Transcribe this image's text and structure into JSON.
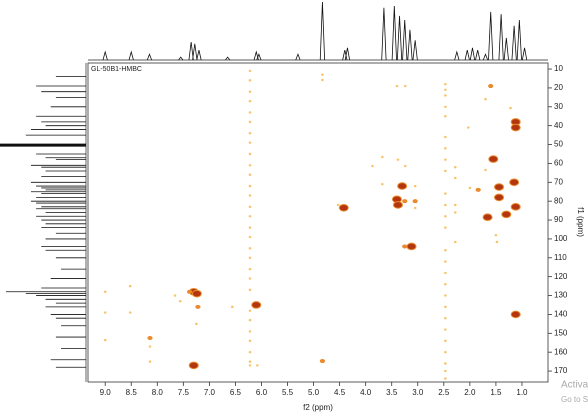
{
  "chart_data": {
    "type": "nmr2d",
    "title": "GL-50B1-HMBC",
    "x_label": "f2 (ppm)",
    "y_label": "f1 (ppm)",
    "xlim": [
      9.33,
      0.5
    ],
    "ylim": [
      6.8,
      175.8
    ],
    "xticks": [
      {
        "value": 9,
        "label": "9.0"
      },
      8.5,
      {
        "value": 8,
        "label": "8.0"
      },
      7.5,
      {
        "value": 7,
        "label": "7.0"
      },
      6.5,
      {
        "value": 6,
        "label": "6.0"
      },
      5.5,
      {
        "value": 5,
        "label": "5.0"
      },
      4.5,
      {
        "value": 4,
        "label": "4.0"
      },
      3.5,
      {
        "value": 3,
        "label": "3.0"
      },
      2.5,
      {
        "value": 2,
        "label": "2.0"
      },
      1.5,
      {
        "value": 1,
        "label": "1.0"
      }
    ],
    "yticks": [
      10,
      20,
      30,
      40,
      50,
      60,
      70,
      80,
      90,
      100,
      110,
      120,
      130,
      140,
      150,
      160,
      170
    ],
    "colors": [
      "#f7c46c",
      "#e98a2c",
      "#b3360f"
    ],
    "peaks": {
      "x": [
        7.3,
        7.24,
        7.3,
        6.1,
        3.4,
        3.38,
        4.42,
        3.3,
        3.12,
        1.55,
        1.44,
        1.44,
        1.66,
        1.12,
        1.12,
        1.15,
        1.12,
        1.12,
        1.3,
        7.38,
        3.25,
        4.83,
        3.25,
        1.6,
        7.22,
        8.14,
        1.84,
        3.05,
        9.0,
        9.0,
        9.0,
        8.52,
        8.52,
        8.14,
        8.14,
        7.66,
        7.56,
        7.25,
        6.56,
        4.83,
        4.83,
        6.22,
        6.08,
        4.53,
        3.87,
        3.68,
        3.68,
        3.38,
        3.24,
        3.4,
        3.24,
        3.05,
        3.05,
        2.47,
        2.47,
        2.28,
        2.28,
        2.28,
        2.28,
        2.28,
        2.03,
        2.0,
        1.7,
        1.5,
        1.48,
        1.22,
        1.7,
        6.22,
        6.22,
        6.22,
        6.22,
        6.22,
        6.22,
        6.22,
        6.22,
        6.22,
        6.22,
        6.22,
        6.22,
        6.22,
        6.22,
        6.22,
        6.22,
        6.22,
        6.22,
        6.22,
        6.22,
        6.22,
        6.22,
        6.22,
        6.22,
        6.22,
        6.22,
        6.22,
        6.22,
        2.47,
        2.47,
        2.47,
        2.47,
        2.47,
        2.47,
        2.47,
        2.47,
        2.47,
        2.47,
        2.47,
        2.47,
        2.47,
        2.47,
        2.47,
        2.47,
        2.47,
        2.47,
        2.47,
        2.47,
        2.47,
        2.47,
        2.47,
        2.47
      ],
      "y": [
        128,
        129,
        167,
        135,
        79,
        82,
        83.5,
        72,
        104,
        57.7,
        72.5,
        78,
        88.5,
        38,
        41,
        70,
        83,
        140,
        87,
        128,
        104,
        164.7,
        80,
        19,
        136,
        152.5,
        74,
        80,
        128,
        139,
        153.6,
        125,
        139,
        157,
        165,
        130,
        133,
        145,
        136,
        13,
        15.8,
        167,
        167,
        82,
        61.4,
        56.6,
        71,
        58,
        61.4,
        19,
        19,
        72,
        83.6,
        21,
        35,
        62,
        67.7,
        82,
        86,
        101.6,
        41,
        73,
        26,
        98,
        101.6,
        30.7,
        63.5,
        11,
        16,
        22,
        27,
        33,
        38,
        44,
        49,
        55,
        61,
        66,
        72,
        77,
        83,
        88,
        94,
        99,
        105,
        110,
        116,
        121,
        127,
        138,
        143,
        149,
        154,
        160,
        165,
        18,
        24,
        30,
        46,
        52,
        58,
        64,
        76,
        82,
        88,
        94,
        106,
        112,
        118,
        124,
        130,
        136,
        142,
        148,
        154,
        160,
        166,
        170,
        174
      ],
      "intensity": [
        3,
        3,
        3,
        3,
        3,
        3,
        3,
        3,
        3,
        3,
        3,
        3,
        3,
        3,
        3,
        3,
        3,
        3,
        3,
        2,
        2,
        2,
        2,
        2,
        2,
        2,
        2,
        2,
        1,
        1,
        1,
        1,
        1,
        1,
        1,
        1,
        1,
        1,
        1,
        1,
        1,
        1,
        1,
        1,
        1,
        1,
        1,
        1,
        1,
        1,
        1,
        1,
        1,
        1,
        1,
        1,
        1,
        1,
        1,
        1,
        1,
        1,
        1,
        1,
        1,
        1,
        1,
        1,
        1,
        1,
        1,
        1,
        1,
        1,
        1,
        1,
        1,
        1,
        1,
        1,
        1,
        1,
        1,
        1,
        1,
        1,
        1,
        1,
        1,
        1,
        1,
        1,
        1,
        1,
        1,
        1,
        1,
        1,
        1,
        1,
        1,
        1,
        1,
        1,
        1,
        1,
        1,
        1,
        1,
        1,
        1,
        1,
        1,
        1,
        1,
        1,
        1,
        1,
        1
      ]
    },
    "f2_projection": {
      "x": [
        9.0,
        8.5,
        8.15,
        7.55,
        7.35,
        7.28,
        7.2,
        6.65,
        6.1,
        6.05,
        5.3,
        4.83,
        4.4,
        4.35,
        3.65,
        3.45,
        3.35,
        3.25,
        3.15,
        3.05,
        2.25,
        2.05,
        1.95,
        1.85,
        1.7,
        1.6,
        1.4,
        1.3,
        1.15,
        1.05,
        0.95
      ],
      "intensity": [
        14,
        14,
        10,
        5,
        31,
        28,
        17,
        5,
        14,
        10,
        10,
        100,
        17,
        21,
        90,
        93,
        76,
        69,
        52,
        34,
        14,
        17,
        21,
        17,
        10,
        83,
        79,
        38,
        59,
        69,
        21
      ]
    },
    "f1_projection": {
      "y": [
        14,
        19,
        22,
        25,
        30,
        35,
        38,
        40,
        42,
        45,
        50.3,
        55,
        57,
        58,
        61,
        62,
        64,
        67,
        70,
        72,
        73,
        74,
        75,
        76,
        78,
        80,
        81,
        83,
        84,
        86,
        88,
        90,
        92,
        94,
        97,
        100,
        104,
        106,
        110,
        116,
        121,
        126,
        128,
        129,
        130,
        132,
        134,
        136,
        140,
        142,
        146,
        152,
        158,
        164,
        168
      ],
      "intensity": [
        35,
        58,
        52,
        35,
        41,
        58,
        52,
        47,
        64,
        70,
        100,
        58,
        47,
        35,
        64,
        52,
        47,
        52,
        64,
        58,
        52,
        47,
        64,
        52,
        58,
        64,
        58,
        52,
        58,
        47,
        58,
        52,
        47,
        52,
        35,
        47,
        52,
        47,
        35,
        29,
        41,
        52,
        93,
        70,
        58,
        47,
        35,
        47,
        41,
        35,
        29,
        35,
        29,
        41,
        35
      ]
    }
  },
  "overlay": {
    "line1": "Activate",
    "line2": "Go to Sett"
  }
}
